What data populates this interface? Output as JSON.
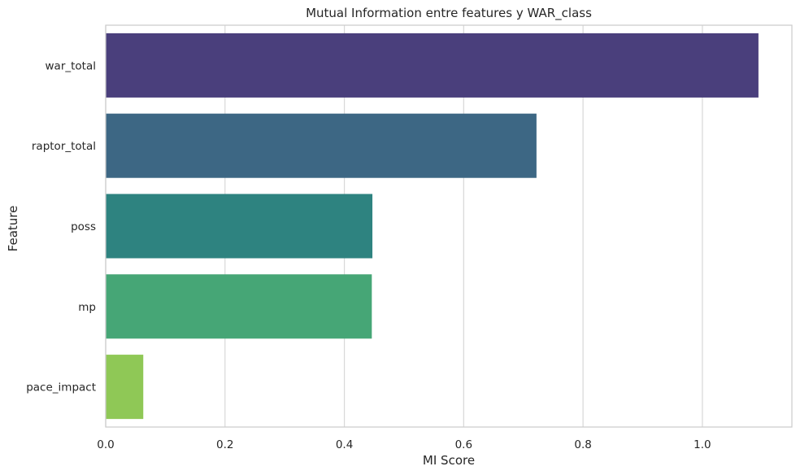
{
  "chart_data": {
    "type": "bar",
    "orientation": "horizontal",
    "title": "Mutual Information entre features y WAR_class",
    "xlabel": "MI Score",
    "ylabel": "Feature",
    "categories": [
      "war_total",
      "raptor_total",
      "poss",
      "mp",
      "pace_impact"
    ],
    "values": [
      1.094,
      0.722,
      0.447,
      0.446,
      0.063
    ],
    "colors": [
      "#4a3f7c",
      "#3d6784",
      "#2e8380",
      "#46a676",
      "#8fc856"
    ],
    "xlim": [
      0,
      1.15
    ],
    "xticks": [
      0.0,
      0.2,
      0.4,
      0.6,
      0.8,
      1.0
    ],
    "xtick_labels": [
      "0.0",
      "0.2",
      "0.4",
      "0.6",
      "0.8",
      "1.0"
    ],
    "grid": true,
    "legend": "none"
  }
}
